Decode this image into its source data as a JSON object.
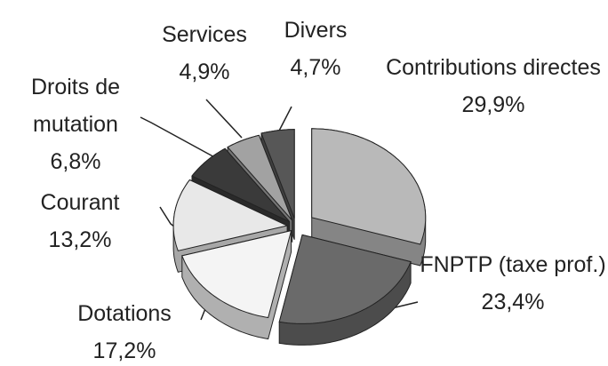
{
  "chart_data": {
    "type": "pie",
    "categories": [
      "Contributions directes",
      "FNPTP (taxe prof.)",
      "Dotations",
      "Courant",
      "Droits de mutation",
      "Services",
      "Divers"
    ],
    "values": [
      29.9,
      23.4,
      17.2,
      13.2,
      6.8,
      4.9,
      4.7
    ],
    "value_labels": [
      "29,9%",
      "23,4%",
      "17,2%",
      "13,2%",
      "6,8%",
      "4,9%",
      "4,7%"
    ],
    "colors": [
      "#b9b9b9",
      "#6a6a6a",
      "#f4f4f4",
      "#e8e8e8",
      "#3a3a3a",
      "#a2a2a2",
      "#575757"
    ]
  }
}
